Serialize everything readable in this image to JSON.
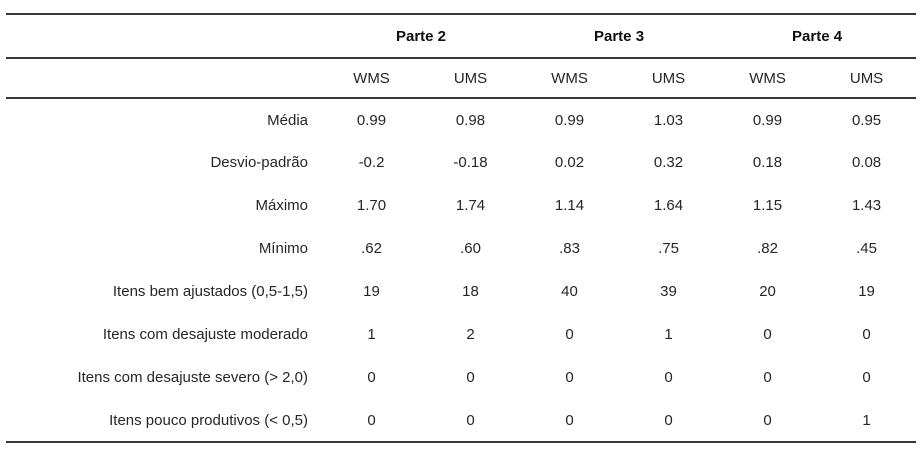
{
  "table": {
    "groups": [
      "Parte 2",
      "Parte 3",
      "Parte 4"
    ],
    "subheaders": [
      "WMS",
      "UMS",
      "WMS",
      "UMS",
      "WMS",
      "UMS"
    ],
    "rows": [
      {
        "label": "Média",
        "values": [
          "0.99",
          "0.98",
          "0.99",
          "1.03",
          "0.99",
          "0.95"
        ]
      },
      {
        "label": "Desvio-padrão",
        "values": [
          "-0.2",
          "-0.18",
          "0.02",
          "0.32",
          "0.18",
          "0.08"
        ]
      },
      {
        "label": "Máximo",
        "values": [
          "1.70",
          "1.74",
          "1.14",
          "1.64",
          "1.15",
          "1.43"
        ]
      },
      {
        "label": "Mínimo",
        "values": [
          ".62",
          ".60",
          ".83",
          ".75",
          ".82",
          ".45"
        ]
      },
      {
        "label": "Itens bem ajustados (0,5-1,5)",
        "values": [
          "19",
          "18",
          "40",
          "39",
          "20",
          "19"
        ]
      },
      {
        "label": "Itens com desajuste moderado",
        "values": [
          "1",
          "2",
          "0",
          "1",
          "0",
          "0"
        ]
      },
      {
        "label": "Itens com desajuste severo (> 2,0)",
        "values": [
          "0",
          "0",
          "0",
          "0",
          "0",
          "0"
        ]
      },
      {
        "label": "Itens pouco produtivos (< 0,5)",
        "values": [
          "0",
          "0",
          "0",
          "0",
          "0",
          "1"
        ]
      }
    ],
    "colors": {
      "text": "#262626",
      "header_text": "#0e0e0e",
      "rule": "#383838",
      "background": "#ffffff"
    }
  }
}
